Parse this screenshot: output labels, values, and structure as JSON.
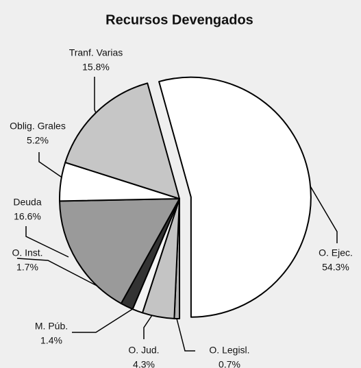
{
  "chart_data": {
    "type": "pie",
    "title": "Recursos Devengados",
    "categories": [
      "O. Ejec.",
      "O. Legisl.",
      "O. Jud.",
      "M. Púb.",
      "O. Inst.",
      "Deuda",
      "Oblig. Grales",
      "Tranf. Varias"
    ],
    "values": [
      54.3,
      0.7,
      4.3,
      1.4,
      1.7,
      16.6,
      5.2,
      15.8
    ],
    "value_labels": [
      "54.3%",
      "0.7%",
      "4.3%",
      "1.4%",
      "1.7%",
      "16.6%",
      "5.2%",
      "15.8%"
    ],
    "colors": [
      "#ffffff",
      "#b4b4b4",
      "#c4c4c4",
      "#f4f4f4",
      "#333333",
      "#9a9a9a",
      "#ffffff",
      "#c6c6c6"
    ],
    "exploded": [
      "O. Ejec."
    ]
  }
}
